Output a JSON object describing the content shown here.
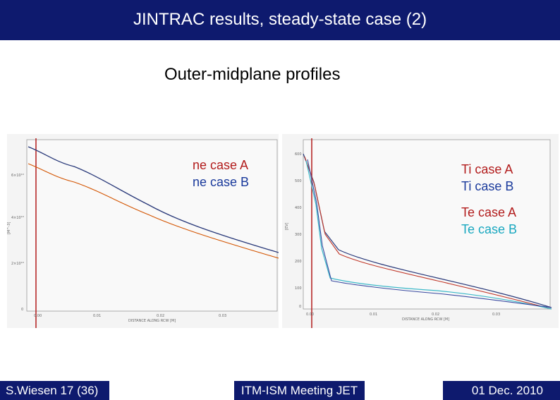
{
  "header": {
    "title": "JINTRAC results, steady-state case (2)"
  },
  "subtitle": "Outer-midplane profiles",
  "colors": {
    "brand_bar": "#0e1a6e",
    "case_a": "#c0392b",
    "case_b": "#2a3a7a",
    "te_b": "#3bb8c8"
  },
  "left_plot": {
    "legend": [
      "ne case A",
      "ne case B"
    ],
    "xlabel": "DISTANCE ALONG RCW [M]",
    "ylabel": "[M^-3]",
    "xticks": [
      "0.00",
      "0.01",
      "0.02",
      "0.03"
    ],
    "yticks": [
      "0",
      "2×10¹⁹",
      "4×10¹⁹",
      "6×10¹⁹"
    ]
  },
  "right_plot": {
    "legend_ti": [
      "Ti case A",
      "Ti case B"
    ],
    "legend_te": [
      "Te case A",
      "Te case B"
    ],
    "xlabel": "DISTANCE ALONG RCW [M]",
    "ylabel": "[EV]",
    "xticks": [
      "0.00",
      "0.01",
      "0.02",
      "0.03"
    ],
    "yticks": [
      "0",
      "100",
      "200",
      "300",
      "400",
      "500",
      "600"
    ]
  },
  "footer": {
    "author": "S.Wiesen   17 (36)",
    "meeting": "ITM-ISM Meeting JET",
    "date": "01 Dec. 2010"
  }
}
